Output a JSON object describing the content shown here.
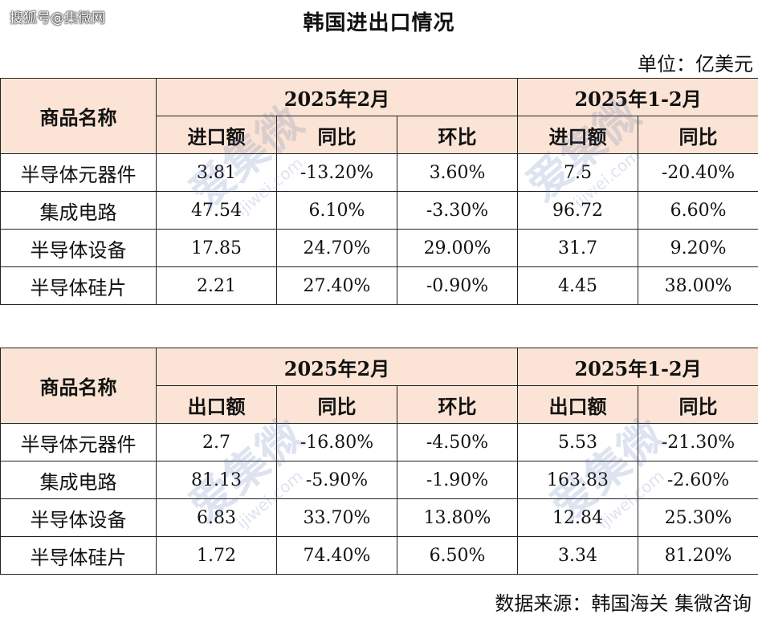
{
  "watermark": {
    "source_label": "搜狐号@集微网",
    "stamp_text": "爱集微",
    "stamp_url": "ijiwei.com"
  },
  "title": "韩国进出口情况",
  "unit": "单位：亿美元",
  "source": "数据来源：韩国海关 集微咨询",
  "import_table": {
    "name_header": "商品名称",
    "period1": "2025年2月",
    "period2": "2025年1-2月",
    "col_value": "进口额",
    "col_yoy": "同比",
    "col_mom": "环比",
    "col_value2": "进口额",
    "col_yoy2": "同比",
    "rows": [
      {
        "name": "半导体元器件",
        "value": "3.81",
        "yoy": "-13.20%",
        "mom": "3.60%",
        "value2": "7.5",
        "yoy2": "-20.40%"
      },
      {
        "name": "集成电路",
        "value": "47.54",
        "yoy": "6.10%",
        "mom": "-3.30%",
        "value2": "96.72",
        "yoy2": "6.60%"
      },
      {
        "name": "半导体设备",
        "value": "17.85",
        "yoy": "24.70%",
        "mom": "29.00%",
        "value2": "31.7",
        "yoy2": "9.20%"
      },
      {
        "name": "半导体硅片",
        "value": "2.21",
        "yoy": "27.40%",
        "mom": "-0.90%",
        "value2": "4.45",
        "yoy2": "38.00%"
      }
    ]
  },
  "export_table": {
    "name_header": "商品名称",
    "period1": "2025年2月",
    "period2": "2025年1-2月",
    "col_value": "出口额",
    "col_yoy": "同比",
    "col_mom": "环比",
    "col_value2": "出口额",
    "col_yoy2": "同比",
    "rows": [
      {
        "name": "半导体元器件",
        "value": "2.7",
        "yoy": "-16.80%",
        "mom": "-4.50%",
        "value2": "5.53",
        "yoy2": "-21.30%"
      },
      {
        "name": "集成电路",
        "value": "81.13",
        "yoy": "-5.90%",
        "mom": "-1.90%",
        "value2": "163.83",
        "yoy2": "-2.60%"
      },
      {
        "name": "半导体设备",
        "value": "6.83",
        "yoy": "33.70%",
        "mom": "13.80%",
        "value2": "12.84",
        "yoy2": "25.30%"
      },
      {
        "name": "半导体硅片",
        "value": "1.72",
        "yoy": "74.40%",
        "mom": "6.50%",
        "value2": "3.34",
        "yoy2": "81.20%"
      }
    ]
  },
  "colors": {
    "header_bg": "#fbe4d5",
    "border": "#222222",
    "watermark": "#4664aa"
  }
}
